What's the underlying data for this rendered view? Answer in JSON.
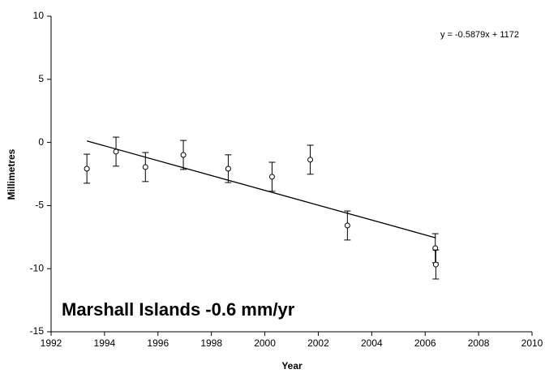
{
  "chart_data": {
    "type": "scatter",
    "x_label": "Year",
    "y_label": "Millimetres",
    "annotation": "Marshall Islands -0.6 mm/yr",
    "series": [
      {
        "color": "#000000",
        "x": [
          1993.34,
          1994.43,
          1995.53,
          1996.95,
          1998.63,
          2000.27,
          2001.7,
          2003.09,
          2006.38,
          2006.4
        ],
        "values": [
          -2.08,
          -0.73,
          -1.95,
          -0.99,
          -2.08,
          -2.72,
          -1.37,
          -6.58,
          -8.38,
          -9.67
        ],
        "errors": [
          1.15,
          1.15,
          1.15,
          1.15,
          1.1,
          1.15,
          1.15,
          1.15,
          1.15,
          1.15
        ]
      }
    ],
    "trendline": {
      "label": "y = -0.5879x + 1172",
      "x": [
        1993.34,
        2006.4
      ],
      "values": [
        0.12,
        -7.56
      ]
    },
    "xlim": [
      1992,
      2010
    ],
    "xticks": [
      1992,
      1994,
      1996,
      1998,
      2000,
      2002,
      2004,
      2006,
      2008,
      2010
    ],
    "ylim": [
      -15,
      10
    ],
    "yticks": [
      -15,
      -10,
      -5,
      0,
      5,
      10
    ]
  }
}
